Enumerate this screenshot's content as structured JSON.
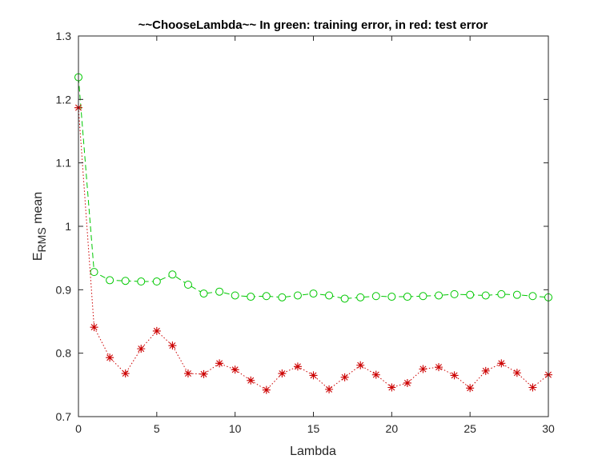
{
  "chart_data": {
    "type": "line",
    "title": "~~ChooseLambda~~ In green: training error, in red: test error",
    "xlabel": "Lambda",
    "ylabel": {
      "main": "E",
      "subscript": "RMS",
      "suffix": " mean"
    },
    "xlim": [
      0,
      30
    ],
    "ylim": [
      0.7,
      1.3
    ],
    "xticks": [
      0,
      5,
      10,
      15,
      20,
      25,
      30
    ],
    "xtick_labels": [
      "0",
      "5",
      "10",
      "15",
      "20",
      "25",
      "30"
    ],
    "yticks": [
      0.7,
      0.8,
      0.9,
      1.0,
      1.1,
      1.2,
      1.3
    ],
    "ytick_labels": [
      "0.7",
      "0.8",
      "0.9",
      "1",
      "1.1",
      "1.2",
      "1.3"
    ],
    "grid": false,
    "x": [
      0,
      1,
      2,
      3,
      4,
      5,
      6,
      7,
      8,
      9,
      10,
      11,
      12,
      13,
      14,
      15,
      16,
      17,
      18,
      19,
      20,
      21,
      22,
      23,
      24,
      25,
      26,
      27,
      28,
      29,
      30
    ],
    "series": [
      {
        "role": "training",
        "color": "#00c800",
        "line_style": "dashed",
        "marker": "circle",
        "values": [
          1.235,
          0.928,
          0.915,
          0.914,
          0.913,
          0.913,
          0.924,
          0.908,
          0.894,
          0.897,
          0.891,
          0.889,
          0.89,
          0.888,
          0.891,
          0.894,
          0.891,
          0.886,
          0.888,
          0.89,
          0.889,
          0.889,
          0.89,
          0.891,
          0.893,
          0.892,
          0.891,
          0.893,
          0.892,
          0.89,
          0.888
        ]
      },
      {
        "role": "test",
        "color": "#cc0000",
        "line_style": "dotted",
        "marker": "asterisk",
        "values": [
          1.187,
          0.841,
          0.793,
          0.768,
          0.807,
          0.835,
          0.812,
          0.768,
          0.767,
          0.784,
          0.774,
          0.757,
          0.742,
          0.768,
          0.779,
          0.765,
          0.743,
          0.762,
          0.781,
          0.766,
          0.746,
          0.753,
          0.775,
          0.778,
          0.765,
          0.745,
          0.772,
          0.784,
          0.769,
          0.746,
          0.766
        ]
      }
    ]
  }
}
